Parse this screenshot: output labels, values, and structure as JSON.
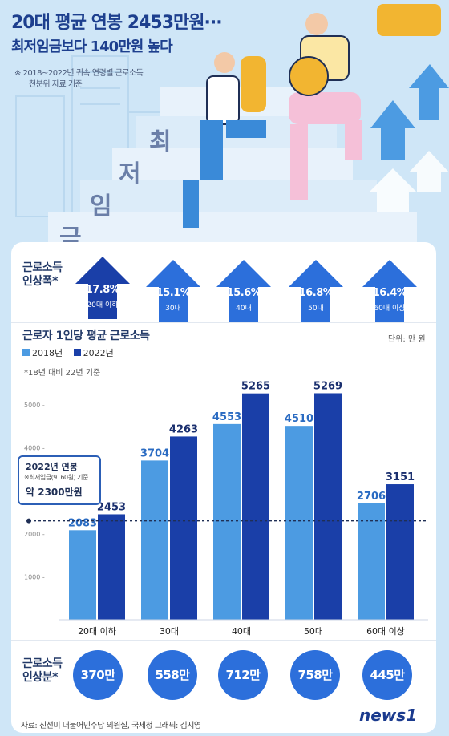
{
  "header": {
    "title_line1": "20대 평균 연봉 2453만원···",
    "title_line2": "최저임금보다 140만원 높다",
    "note_line1": "※ 2018~2022년 귀속 연령별 근로소득",
    "note_line2": "천분위 자료 기준",
    "stair_chars": [
      "금",
      "임",
      "저",
      "최"
    ]
  },
  "increase_rate": {
    "label_line1": "근로소득",
    "label_line2": "인상폭*",
    "items": [
      {
        "pct": "17.8%",
        "age": "20대 이하",
        "emphasis": true
      },
      {
        "pct": "15.1%",
        "age": "30대",
        "emphasis": false
      },
      {
        "pct": "15.6%",
        "age": "40대",
        "emphasis": false
      },
      {
        "pct": "16.8%",
        "age": "50대",
        "emphasis": false
      },
      {
        "pct": "16.4%",
        "age": "60대 이상",
        "emphasis": false
      }
    ]
  },
  "chart_data": {
    "type": "bar",
    "title": "근로자 1인당 평균 근로소득",
    "unit": "단위: 만 원",
    "footnote": "*18년 대비 22년 기준",
    "categories": [
      "20대 이하",
      "30대",
      "40대",
      "50대",
      "60대 이상"
    ],
    "series": [
      {
        "name": "2018년",
        "values": [
          2083,
          3704,
          4553,
          4510,
          2706
        ],
        "color": "#4c9be2"
      },
      {
        "name": "2022년",
        "values": [
          2453,
          4263,
          5265,
          5269,
          3151
        ],
        "color": "#1a3fa8"
      }
    ],
    "ylim": [
      0,
      5800
    ],
    "yticks": [
      1000,
      2000,
      3000,
      4000,
      5000
    ],
    "ytick_labels": [
      "1000 -",
      "2000 -",
      "3000 -",
      "4000 -",
      "5000 -"
    ],
    "reference_line": 2300,
    "grid": false,
    "legend_position": "top-left"
  },
  "callout": {
    "line1": "2022년 연봉",
    "line2": "※최저임금(9160원) 기준",
    "line3": "약 2300만원"
  },
  "increase_amount": {
    "label_line1": "근로소득",
    "label_line2": "인상분*",
    "values": [
      "370만",
      "558만",
      "712만",
      "758만",
      "445만"
    ]
  },
  "footer": {
    "source": "자료: 진선미 더불어민주당 의원실, 국세청  그래픽: 김지영",
    "brand": "news1"
  },
  "colors": {
    "background": "#cfe6f7",
    "accent_dark": "#1a3fa8",
    "accent_light": "#4c9be2",
    "circle": "#2c6fdb"
  }
}
